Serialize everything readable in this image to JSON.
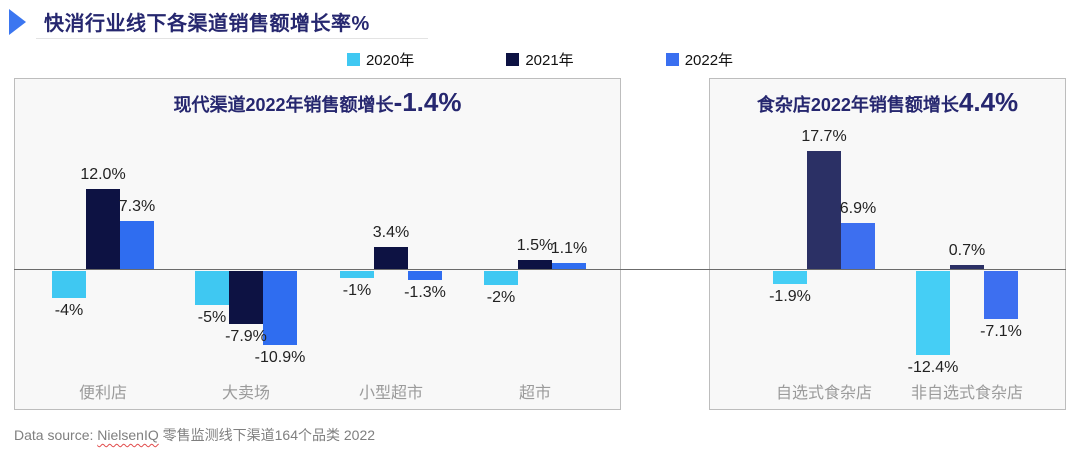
{
  "title": {
    "text": "快消行业线下各渠道销售额增长率%"
  },
  "legend": {
    "items": [
      {
        "label": "2020年",
        "color": "#3fc8f2"
      },
      {
        "label": "2021年",
        "color": "#0d1243"
      },
      {
        "label": "2022年",
        "color": "#3a6ff0"
      }
    ]
  },
  "chart_data": [
    {
      "type": "bar",
      "title": "现代渠道2022年销售额增长",
      "title_value": "-1.4%",
      "categories": [
        "便利店",
        "大卖场",
        "小型超市",
        "超市"
      ],
      "series": [
        {
          "name": "2020年",
          "color": "#3fc8f2",
          "values": [
            -4,
            -5,
            -1,
            -2
          ],
          "labels": [
            "-4%",
            "-5%",
            "-1%",
            "-2%"
          ]
        },
        {
          "name": "2021年",
          "color": "#0d1243",
          "values": [
            12.0,
            -7.9,
            3.4,
            1.5
          ],
          "labels": [
            "12.0%",
            "-7.9%",
            "3.4%",
            "1.5%"
          ]
        },
        {
          "name": "2022年",
          "color": "#2f6df0",
          "values": [
            7.3,
            -10.9,
            -1.3,
            1.1
          ],
          "labels": [
            "7.3%",
            "-10.9%",
            "-1.3%",
            "1.1%"
          ]
        }
      ],
      "ylim": [
        -14,
        20
      ],
      "grid": false,
      "legend_position": "top"
    },
    {
      "type": "bar",
      "title": "食杂店2022年销售额增长",
      "title_value": "4.4%",
      "categories": [
        "自选式食杂店",
        "非自选式食杂店"
      ],
      "series": [
        {
          "name": "2020年",
          "color": "#45cef5",
          "values": [
            -1.9,
            -12.4
          ],
          "labels": [
            "-1.9%",
            "-12.4%"
          ]
        },
        {
          "name": "2021年",
          "color": "#2b3065",
          "values": [
            17.7,
            0.7
          ],
          "labels": [
            "17.7%",
            "0.7%"
          ]
        },
        {
          "name": "2022年",
          "color": "#3d6ff0",
          "values": [
            6.9,
            -7.1
          ],
          "labels": [
            "6.9%",
            "-7.1%"
          ]
        }
      ],
      "ylim": [
        -14,
        20
      ],
      "grid": false,
      "legend_position": "top"
    }
  ],
  "footer": {
    "prefix": "Data source: ",
    "source": "NielsenIQ",
    "suffix": " 零售监测线下渠道164个品类 2022"
  }
}
